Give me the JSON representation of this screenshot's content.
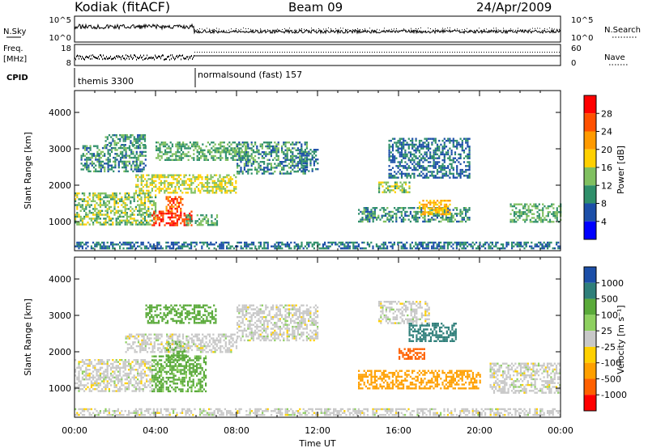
{
  "header": {
    "station": "Kodiak (fitACF)",
    "beam": "Beam 09",
    "date": "24/Apr/2009"
  },
  "top_panels": {
    "nsky_label": "N.Sky",
    "nsky_ticks": [
      "10^5",
      "10^0"
    ],
    "nsearch_label": "N.Search",
    "nsearch_ticks": [
      "10^5",
      "10^0"
    ],
    "freq_label": "Freq.",
    "freq_unit": "[MHz]",
    "freq_ticks": [
      "18",
      "8"
    ],
    "nave_label": "Nave",
    "nave_ticks": [
      "60",
      "0"
    ],
    "cpid_label": "CPID",
    "cpid_modes": [
      {
        "name": "themis 3300",
        "start_hour": 0
      },
      {
        "name": "normalsound (fast) 157",
        "start_hour": 6
      }
    ]
  },
  "chart_data": [
    {
      "type": "heatmap",
      "quantity": "power",
      "ylabel": "Slant Range [km]",
      "ylim": [
        200,
        4600
      ],
      "yticks": [
        1000,
        2000,
        3000,
        4000
      ],
      "xlabel": "Time UT",
      "xlim": [
        0,
        24
      ],
      "xticks": [
        "00:00",
        "04:00",
        "08:00",
        "12:00",
        "16:00",
        "20:00",
        "00:00"
      ],
      "colorbar": {
        "label": "Power [dB]",
        "ticks": [
          "28",
          "24",
          "20",
          "16",
          "12",
          "8",
          "4"
        ],
        "colors": [
          "#ff0000",
          "#ff5000",
          "#ff9a00",
          "#ffd000",
          "#80c060",
          "#2f8f6a",
          "#1c4fa8",
          "#0000ff"
        ]
      },
      "regions": [
        {
          "t0": 0.0,
          "t1": 24.0,
          "r0": 250,
          "r1": 450,
          "value": 8
        },
        {
          "t0": 0.0,
          "t1": 4.0,
          "r0": 900,
          "r1": 1800,
          "value": 14
        },
        {
          "t0": 0.3,
          "t1": 3.5,
          "r0": 2400,
          "r1": 3100,
          "value": 10
        },
        {
          "t0": 1.5,
          "t1": 3.5,
          "r0": 3100,
          "r1": 3400,
          "value": 10
        },
        {
          "t0": 3.8,
          "t1": 5.8,
          "r0": 900,
          "r1": 1300,
          "value": 28
        },
        {
          "t0": 4.5,
          "t1": 5.3,
          "r0": 1300,
          "r1": 1700,
          "value": 26
        },
        {
          "t0": 3.0,
          "t1": 8.0,
          "r0": 1800,
          "r1": 2300,
          "value": 16
        },
        {
          "t0": 5.5,
          "t1": 7.0,
          "r0": 900,
          "r1": 1200,
          "value": 12
        },
        {
          "t0": 4.0,
          "t1": 8.5,
          "r0": 2700,
          "r1": 3200,
          "value": 12
        },
        {
          "t0": 8.0,
          "t1": 11.5,
          "r0": 2300,
          "r1": 3200,
          "value": 10
        },
        {
          "t0": 11.0,
          "t1": 12.0,
          "r0": 2400,
          "r1": 3000,
          "value": 8
        },
        {
          "t0": 14.0,
          "t1": 19.5,
          "r0": 1000,
          "r1": 1400,
          "value": 10
        },
        {
          "t0": 15.0,
          "t1": 16.5,
          "r0": 1800,
          "r1": 2100,
          "value": 14
        },
        {
          "t0": 17.0,
          "t1": 18.5,
          "r0": 1200,
          "r1": 1600,
          "value": 20
        },
        {
          "t0": 15.5,
          "t1": 19.5,
          "r0": 2200,
          "r1": 3300,
          "value": 8
        },
        {
          "t0": 21.5,
          "t1": 24.0,
          "r0": 1000,
          "r1": 1500,
          "value": 12
        }
      ]
    },
    {
      "type": "heatmap",
      "quantity": "velocity",
      "ylabel": "Slant Range [km]",
      "ylim": [
        200,
        4600
      ],
      "yticks": [
        1000,
        2000,
        3000,
        4000
      ],
      "xlabel": "Time UT",
      "xlim": [
        0,
        24
      ],
      "xticks": [
        "00:00",
        "04:00",
        "08:00",
        "12:00",
        "16:00",
        "20:00",
        "00:00"
      ],
      "colorbar": {
        "label": "Velocity [m s⁻¹]",
        "ticks": [
          "1000",
          "500",
          "100",
          "25",
          "-25",
          "-100",
          "-500",
          "-1000"
        ],
        "colors": [
          "#1c4fa8",
          "#2f7f7a",
          "#5aaa3a",
          "#8ed060",
          "#c8c8c8",
          "#ffd000",
          "#ffa000",
          "#ff6000",
          "#ff0000"
        ]
      },
      "regions": [
        {
          "t0": 0.0,
          "t1": 24.0,
          "r0": 250,
          "r1": 450,
          "value": 0
        },
        {
          "t0": 0.0,
          "t1": 3.8,
          "r0": 900,
          "r1": 1800,
          "value": 0
        },
        {
          "t0": 3.8,
          "t1": 6.5,
          "r0": 900,
          "r1": 1900,
          "value": 120
        },
        {
          "t0": 4.5,
          "t1": 5.5,
          "r0": 1800,
          "r1": 2300,
          "value": 300
        },
        {
          "t0": 2.5,
          "t1": 8.0,
          "r0": 2000,
          "r1": 2500,
          "value": 0
        },
        {
          "t0": 3.5,
          "t1": 7.0,
          "r0": 2800,
          "r1": 3300,
          "value": 200
        },
        {
          "t0": 8.0,
          "t1": 12.0,
          "r0": 2300,
          "r1": 3300,
          "value": 0
        },
        {
          "t0": 14.0,
          "t1": 20.0,
          "r0": 1000,
          "r1": 1500,
          "value": -200
        },
        {
          "t0": 16.0,
          "t1": 17.3,
          "r0": 1800,
          "r1": 2100,
          "value": -600
        },
        {
          "t0": 16.5,
          "t1": 18.8,
          "r0": 2300,
          "r1": 2800,
          "value": 800
        },
        {
          "t0": 15.0,
          "t1": 17.5,
          "r0": 2800,
          "r1": 3400,
          "value": 0
        },
        {
          "t0": 20.5,
          "t1": 24.0,
          "r0": 900,
          "r1": 1700,
          "value": 0
        }
      ]
    }
  ]
}
